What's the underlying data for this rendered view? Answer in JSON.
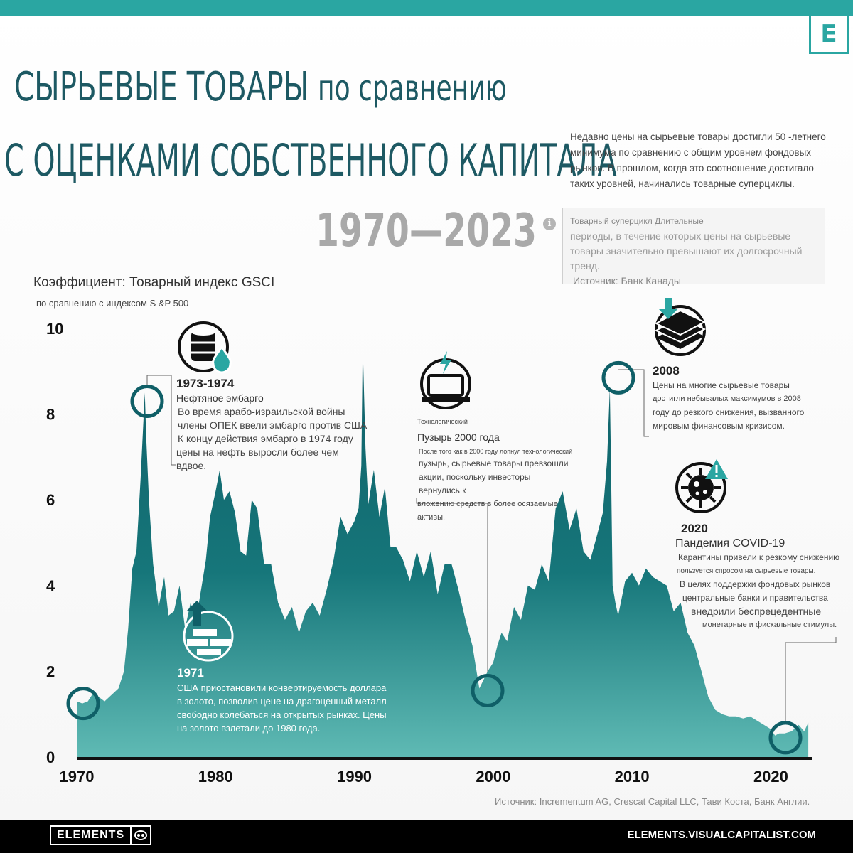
{
  "header": {
    "title_line1_big": "СЫРЬЕВЫЕ ТОВАРЫ",
    "title_line1_small": "по сравнению",
    "title_line2": "С ОЦЕНКАМИ СОБСТВЕННОГО КАПИТАЛА",
    "years": "1970—2023",
    "logo_letter": "E"
  },
  "intro": "Недавно цены на сырьевые товары достигли 50 -летнего минимума по сравнению с общим уровнем фондовых рынков. В прошлом, когда это соотношение достигало таких уровней, начинались товарные суперциклы.",
  "info": {
    "icon": "info-icon",
    "line1": "Товарный суперцикл Длительные",
    "line2": "периоды, в течение которых цены на сырьевые товары значительно превышают их долгосрочный тренд.",
    "line3": "Источник: Банк Канады"
  },
  "axis": {
    "ylabel_line1": "Коэффициент: Товарный индекс GSCI",
    "ylabel_line2": "по сравнению с индексом S &P 500"
  },
  "annotations": {
    "embargo": {
      "icon": "oil-barrel-icon",
      "year": "1973-1974",
      "subtitle": "Нефтяное эмбарго",
      "text": [
        "Во время арабо-израильской войны",
        "члены ОПЕК ввели эмбарго против США",
        "К концу действия эмбарго в 1974 году",
        "цены на нефть выросли более чем вдвое."
      ]
    },
    "gold": {
      "icon": "gold-bars-icon",
      "year": "1971",
      "text": [
        "США приостановили конвертируемость доллара",
        "в золото, позволив цене на драгоценный металл",
        "свободно колебаться на открытых рынках. Цены",
        "на золото взлетали до 1980 года."
      ]
    },
    "tech": {
      "icon": "laptop-icon",
      "label_small": "Технологический",
      "subtitle": "Пузырь 2000 года",
      "text": [
        "После того как в 2000 году лопнул технологический",
        "пузырь, сырьевые товары превзошли",
        "акции, поскольку инвесторы вернулись к",
        "вложению средств в более осязаемые активы."
      ]
    },
    "crisis": {
      "icon": "money-stack-icon",
      "year": "2008",
      "text": [
        "Цены на многие сырьевые товары",
        "достигли небывалых максимумов в 2008",
        "году до резкого снижения, вызванного",
        "мировым финансовым кризисом."
      ]
    },
    "covid": {
      "icon": "virus-icon",
      "year": "2020",
      "subtitle": "Пандемия COVID-19",
      "text": [
        "Карантины привели к резкому снижению",
        "пользуется спросом на сырьевые товары.",
        "В целях поддержки фондовых рынков",
        "центральные банки и правительства",
        "внедрили беспрецедентные",
        "монетарные и фискальные стимулы."
      ]
    }
  },
  "source": "Источник: Incrementum AG, Crescat Capital LLC, Тави Коста, Банк Англии.",
  "footer": {
    "logo_text": "ELEMENTS",
    "url": "ELEMENTS.VISUALCAPITALIST.COM"
  },
  "colors": {
    "teal_dark": "#0f5f67",
    "teal_light": "#5fbab4",
    "accent": "#2aa6a2",
    "title": "#1d5963"
  },
  "chart_data": {
    "type": "area",
    "series": [
      {
        "x": [
          1970.0,
          1970.4,
          1970.8,
          1971.2,
          1971.6,
          1972.0,
          1972.5,
          1973.0,
          1973.4,
          1973.7,
          1974.0,
          1974.3,
          1974.6,
          1974.9,
          1975.0,
          1975.2,
          1975.5,
          1975.9,
          1976.3,
          1976.6,
          1977.0,
          1977.4,
          1977.8,
          1978.2,
          1978.6,
          1979.0,
          1979.3,
          1979.6,
          1980.0,
          1980.3,
          1980.6,
          1981.0,
          1981.4,
          1981.8,
          1982.2,
          1982.6,
          1983.0,
          1983.5,
          1984.0,
          1984.5,
          1985.0,
          1985.5,
          1986.0,
          1986.5,
          1987.0,
          1987.5,
          1988.0,
          1988.5,
          1989.0,
          1989.5,
          1990.0,
          1990.3,
          1990.5,
          1990.6,
          1990.8,
          1991.0,
          1991.4,
          1991.8,
          1992.2,
          1992.6,
          1993.0,
          1993.5,
          1994.0,
          1994.5,
          1995.0,
          1995.5,
          1996.0,
          1996.5,
          1997.0,
          1997.5,
          1998.0,
          1998.5,
          1999.0,
          1999.3,
          1999.6,
          2000.0,
          2000.3,
          2000.6,
          2001.0,
          2001.5,
          2002.0,
          2002.5,
          2003.0,
          2003.5,
          2004.0,
          2004.5,
          2005.0,
          2005.5,
          2006.0,
          2006.5,
          2007.0,
          2007.5,
          2007.9,
          2008.2,
          2008.4,
          2008.5,
          2008.6,
          2008.8,
          2009.0,
          2009.5,
          2010.0,
          2010.5,
          2011.0,
          2011.5,
          2012.0,
          2012.5,
          2013.0,
          2013.5,
          2014.0,
          2014.5,
          2015.0,
          2015.5,
          2016.0,
          2016.5,
          2017.0,
          2017.5,
          2018.0,
          2018.5,
          2019.0,
          2019.5,
          2020.0,
          2020.3,
          2020.6,
          2021.0,
          2021.5,
          2022.0,
          2022.4,
          2022.7
        ],
        "values": [
          1.3,
          1.25,
          1.3,
          1.5,
          1.4,
          1.3,
          1.45,
          1.6,
          2.0,
          3.0,
          4.4,
          4.8,
          6.5,
          8.5,
          7.5,
          6.0,
          4.5,
          3.5,
          4.2,
          3.3,
          3.4,
          4.0,
          3.0,
          3.6,
          3.2,
          4.0,
          4.6,
          5.6,
          6.2,
          6.7,
          6.0,
          6.2,
          5.7,
          4.8,
          4.7,
          6.0,
          5.8,
          4.5,
          4.5,
          3.6,
          3.2,
          3.5,
          2.9,
          3.4,
          3.6,
          3.3,
          3.9,
          4.6,
          5.6,
          5.2,
          5.5,
          5.8,
          6.8,
          9.6,
          7.2,
          5.9,
          6.7,
          5.6,
          6.3,
          4.9,
          4.9,
          4.6,
          4.1,
          4.8,
          4.2,
          4.8,
          3.8,
          4.5,
          4.5,
          3.9,
          3.2,
          2.6,
          1.6,
          1.8,
          2.0,
          2.2,
          2.6,
          2.9,
          2.7,
          3.5,
          3.2,
          4.0,
          3.9,
          4.5,
          4.1,
          5.8,
          6.2,
          5.3,
          5.8,
          4.8,
          4.6,
          5.2,
          5.7,
          6.9,
          8.6,
          6.5,
          4.0,
          3.6,
          3.3,
          4.1,
          4.3,
          4.0,
          4.4,
          4.2,
          4.1,
          4.0,
          3.4,
          3.6,
          2.9,
          2.6,
          2.0,
          1.4,
          1.1,
          1.0,
          0.95,
          0.95,
          0.9,
          0.95,
          0.85,
          0.75,
          0.65,
          0.5,
          0.55,
          0.55,
          0.6,
          0.75,
          0.6,
          0.8
        ]
      }
    ],
    "xlim": [
      1970,
      2023
    ],
    "ylim": [
      0,
      10
    ],
    "xticks": [
      "1970",
      "1980",
      "1990",
      "2000",
      "2010",
      "2020"
    ],
    "yticks": [
      "0",
      "2",
      "4",
      "6",
      "8",
      "10"
    ],
    "markers": [
      {
        "label": "1971",
        "y": 1.25
      },
      {
        "label": "1973-1974",
        "y": 8.3
      },
      {
        "label": "Технологический Пузырь 2000 года",
        "y": 1.55
      },
      {
        "label": "2008",
        "y": 8.85
      },
      {
        "label": "2020",
        "y": 0.45
      }
    ],
    "grid": false
  }
}
